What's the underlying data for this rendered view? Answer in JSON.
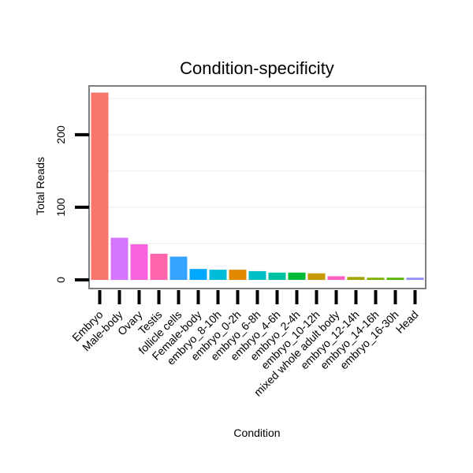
{
  "chart_data": {
    "type": "bar",
    "title": "Condition-specificity",
    "xlabel": "Condition",
    "ylabel": "Total Reads",
    "ylim": [
      0,
      277
    ],
    "yticks": [
      0,
      100,
      200
    ],
    "grid": true,
    "categories": [
      "Embryo",
      "Male-body",
      "Ovary",
      "Testis",
      "follicle cells",
      "Female-body",
      "embryo_8-10h",
      "embryo_0-2h",
      "embryo_6-8h",
      "embryo_4-6h",
      "embryo_2-4h",
      "embryo_10-12h",
      "mixed whole adult body",
      "embryo_12-14h",
      "embryo_14-16h",
      "embryo_16-30h",
      "Head"
    ],
    "values": [
      258,
      58,
      49,
      36,
      32,
      15,
      14,
      14,
      12,
      10,
      10,
      9,
      5,
      4,
      3,
      3,
      3
    ],
    "colors": [
      "#F8766D",
      "#D575FE",
      "#F962DD",
      "#FF65AC",
      "#35A2FF",
      "#00A9FF",
      "#00BCD8",
      "#E38900",
      "#00BFC4",
      "#00C1A3",
      "#00BA38",
      "#C49A00",
      "#FF61C3",
      "#A3A500",
      "#7CAE00",
      "#53B400",
      "#9590FF"
    ]
  }
}
